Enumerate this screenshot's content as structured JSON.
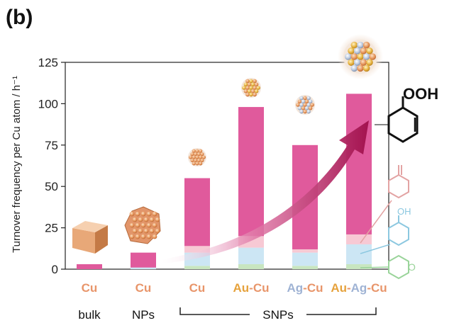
{
  "panel_label": "(b)",
  "chart_data": {
    "type": "bar",
    "stacked": true,
    "ylabel": "Turnover frequency per Cu atom / h⁻¹",
    "ylim": [
      0,
      125
    ],
    "yticks": [
      0,
      25,
      50,
      75,
      100,
      125
    ],
    "categories": [
      {
        "parts": [
          {
            "text": "Cu",
            "color": "#e8956a"
          }
        ]
      },
      {
        "parts": [
          {
            "text": "Cu",
            "color": "#e8956a"
          }
        ]
      },
      {
        "parts": [
          {
            "text": "Cu",
            "color": "#e8956a"
          }
        ]
      },
      {
        "parts": [
          {
            "text": "Au",
            "color": "#e6a23c"
          },
          {
            "text": "-",
            "color": "#e8956a"
          },
          {
            "text": "Cu",
            "color": "#e8956a"
          }
        ]
      },
      {
        "parts": [
          {
            "text": "Ag",
            "color": "#9fb3d4"
          },
          {
            "text": "-",
            "color": "#e8956a"
          },
          {
            "text": "Cu",
            "color": "#e8956a"
          }
        ]
      },
      {
        "parts": [
          {
            "text": "Au",
            "color": "#e6a23c"
          },
          {
            "text": "-",
            "color": "#e8956a"
          },
          {
            "text": "Ag",
            "color": "#9fb3d4"
          },
          {
            "text": "-",
            "color": "#e8956a"
          },
          {
            "text": "Cu",
            "color": "#e8956a"
          }
        ]
      }
    ],
    "groups": [
      {
        "label": "bulk",
        "from": 0,
        "to": 0,
        "bracket": false
      },
      {
        "label": "NPs",
        "from": 1,
        "to": 1,
        "bracket": false
      },
      {
        "label": "SNPs",
        "from": 2,
        "to": 5,
        "bracket": true
      }
    ],
    "series": [
      {
        "values": [
          0,
          0,
          2,
          3,
          2,
          3
        ],
        "color": "#c8e6c0"
      },
      {
        "values": [
          0,
          1,
          8,
          10,
          8,
          12
        ],
        "color": "#cce6f4"
      },
      {
        "values": [
          0,
          0,
          4,
          7,
          2,
          6
        ],
        "color": "#f7c9d4"
      },
      {
        "values": [
          3,
          9,
          41,
          78,
          63,
          85
        ],
        "color": "#e05a9c"
      }
    ],
    "annotation": {
      "type": "trend-arrow",
      "color": "#b01c5e"
    },
    "product_labels": [
      "OOH"
    ]
  }
}
